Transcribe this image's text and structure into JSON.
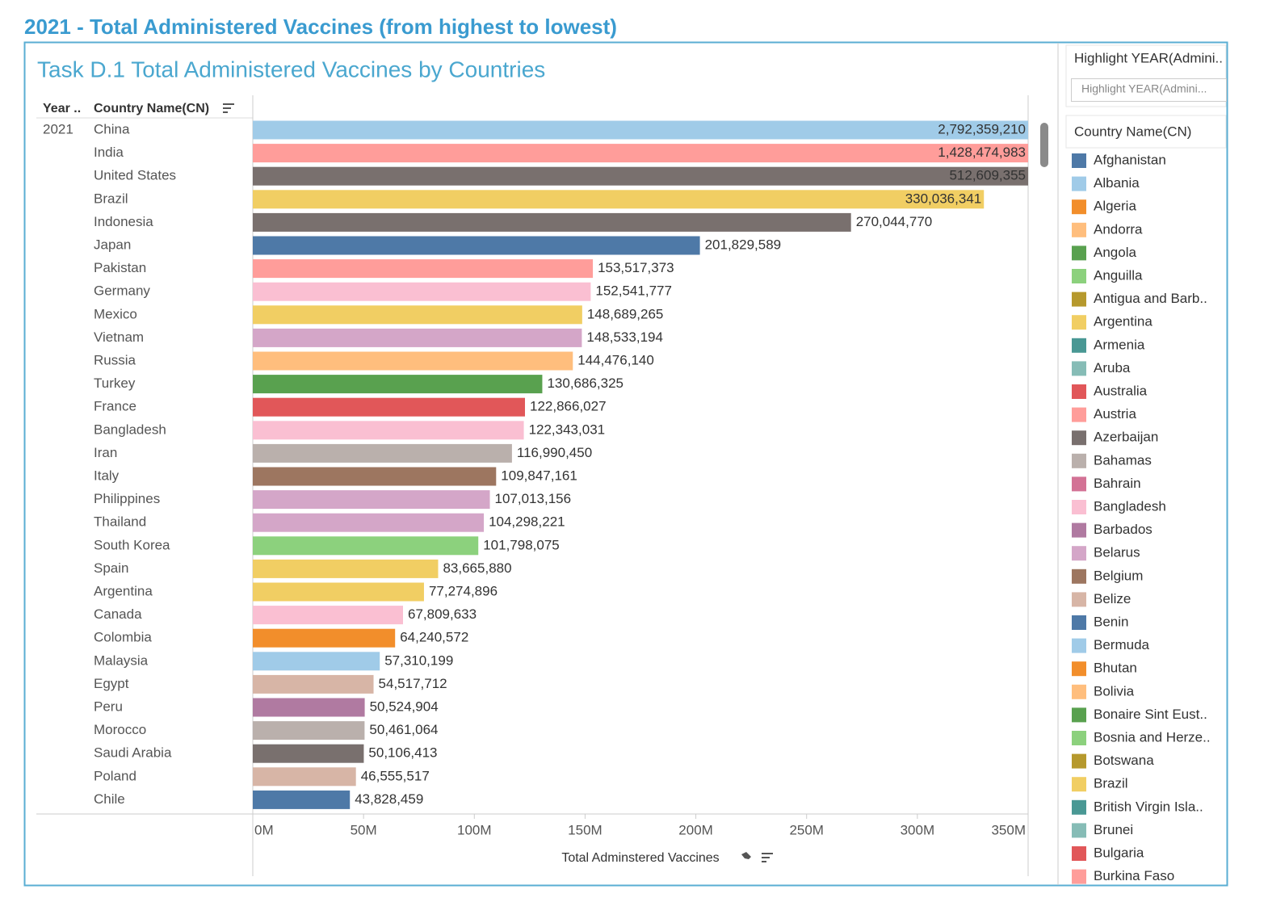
{
  "page_title": "2021 - Total Administered Vaccines (from highest to lowest)",
  "chart_data": {
    "type": "bar",
    "orientation": "horizontal",
    "title": "Task D.1 Total Administered Vaccines by Countries",
    "year_header": "Year ..",
    "category_header": "Country Name(CN)",
    "year": "2021",
    "x_label": "Total Adminstered Vaccines",
    "categories": [
      "China",
      "India",
      "United States",
      "Brazil",
      "Indonesia",
      "Japan",
      "Pakistan",
      "Germany",
      "Mexico",
      "Vietnam",
      "Russia",
      "Turkey",
      "France",
      "Bangladesh",
      "Iran",
      "Italy",
      "Philippines",
      "Thailand",
      "South Korea",
      "Spain",
      "Argentina",
      "Canada",
      "Colombia",
      "Malaysia",
      "Egypt",
      "Peru",
      "Morocco",
      "Saudi Arabia",
      "Poland",
      "Chile"
    ],
    "values": [
      2792359210,
      1428474983,
      512609355,
      330036341,
      270044770,
      201829589,
      153517373,
      152541777,
      148689265,
      148533194,
      144476140,
      130686325,
      122866027,
      122343031,
      116990450,
      109847161,
      107013156,
      104298221,
      101798075,
      83665880,
      77274896,
      67809633,
      64240572,
      57310199,
      54517712,
      50524904,
      50461064,
      50106413,
      46555517,
      43828459
    ],
    "value_labels": [
      "2,792,359,210",
      "1,428,474,983",
      "512,609,355",
      "330,036,341",
      "270,044,770",
      "201,829,589",
      "153,517,373",
      "152,541,777",
      "148,689,265",
      "148,533,194",
      "144,476,140",
      "130,686,325",
      "122,866,027",
      "122,343,031",
      "116,990,450",
      "109,847,161",
      "107,013,156",
      "104,298,221",
      "101,798,075",
      "83,665,880",
      "77,274,896",
      "67,809,633",
      "64,240,572",
      "57,310,199",
      "54,517,712",
      "50,524,904",
      "50,461,064",
      "50,106,413",
      "46,555,517",
      "43,828,459"
    ],
    "colors": [
      "#a0cbe8",
      "#ff9d9a",
      "#79706e",
      "#f1ce63",
      "#79706e",
      "#4e79a7",
      "#ff9d9a",
      "#fabfd2",
      "#f1ce63",
      "#d4a6c8",
      "#ffbe7d",
      "#59a14f",
      "#e15759",
      "#fabfd2",
      "#bab0ac",
      "#9d7660",
      "#d4a6c8",
      "#d4a6c8",
      "#8cd17d",
      "#f1ce63",
      "#f1ce63",
      "#fabfd2",
      "#f28e2b",
      "#a0cbe8",
      "#d7b5a6",
      "#b07aa1",
      "#bab0ac",
      "#79706e",
      "#d7b5a6",
      "#4e79a7"
    ],
    "xlim": [
      0,
      350000000
    ],
    "xticks": [
      {
        "value": 0,
        "label": "0M"
      },
      {
        "value": 50000000,
        "label": "50M"
      },
      {
        "value": 100000000,
        "label": "100M"
      },
      {
        "value": 150000000,
        "label": "150M"
      },
      {
        "value": 200000000,
        "label": "200M"
      },
      {
        "value": 250000000,
        "label": "250M"
      },
      {
        "value": 300000000,
        "label": "300M"
      },
      {
        "value": 350000000,
        "label": "350M"
      }
    ],
    "highlight": {
      "title": "Highlight YEAR(Admini..",
      "placeholder": "Highlight YEAR(Admini..."
    },
    "legend": {
      "title": "Country Name(CN)",
      "items": [
        {
          "name": "Afghanistan",
          "color": "#4e79a7"
        },
        {
          "name": "Albania",
          "color": "#a0cbe8"
        },
        {
          "name": "Algeria",
          "color": "#f28e2b"
        },
        {
          "name": "Andorra",
          "color": "#ffbe7d"
        },
        {
          "name": "Angola",
          "color": "#59a14f"
        },
        {
          "name": "Anguilla",
          "color": "#8cd17d"
        },
        {
          "name": "Antigua and Barb..",
          "color": "#b6992d"
        },
        {
          "name": "Argentina",
          "color": "#f1ce63"
        },
        {
          "name": "Armenia",
          "color": "#499894"
        },
        {
          "name": "Aruba",
          "color": "#86bcb6"
        },
        {
          "name": "Australia",
          "color": "#e15759"
        },
        {
          "name": "Austria",
          "color": "#ff9d9a"
        },
        {
          "name": "Azerbaijan",
          "color": "#79706e"
        },
        {
          "name": "Bahamas",
          "color": "#bab0ac"
        },
        {
          "name": "Bahrain",
          "color": "#d37295"
        },
        {
          "name": "Bangladesh",
          "color": "#fabfd2"
        },
        {
          "name": "Barbados",
          "color": "#b07aa1"
        },
        {
          "name": "Belarus",
          "color": "#d4a6c8"
        },
        {
          "name": "Belgium",
          "color": "#9d7660"
        },
        {
          "name": "Belize",
          "color": "#d7b5a6"
        },
        {
          "name": "Benin",
          "color": "#4e79a7"
        },
        {
          "name": "Bermuda",
          "color": "#a0cbe8"
        },
        {
          "name": "Bhutan",
          "color": "#f28e2b"
        },
        {
          "name": "Bolivia",
          "color": "#ffbe7d"
        },
        {
          "name": "Bonaire Sint Eust..",
          "color": "#59a14f"
        },
        {
          "name": "Bosnia and Herze..",
          "color": "#8cd17d"
        },
        {
          "name": "Botswana",
          "color": "#b6992d"
        },
        {
          "name": "Brazil",
          "color": "#f1ce63"
        },
        {
          "name": "British Virgin Isla..",
          "color": "#499894"
        },
        {
          "name": "Brunei",
          "color": "#86bcb6"
        },
        {
          "name": "Bulgaria",
          "color": "#e15759"
        },
        {
          "name": "Burkina Faso",
          "color": "#ff9d9a"
        }
      ]
    }
  }
}
